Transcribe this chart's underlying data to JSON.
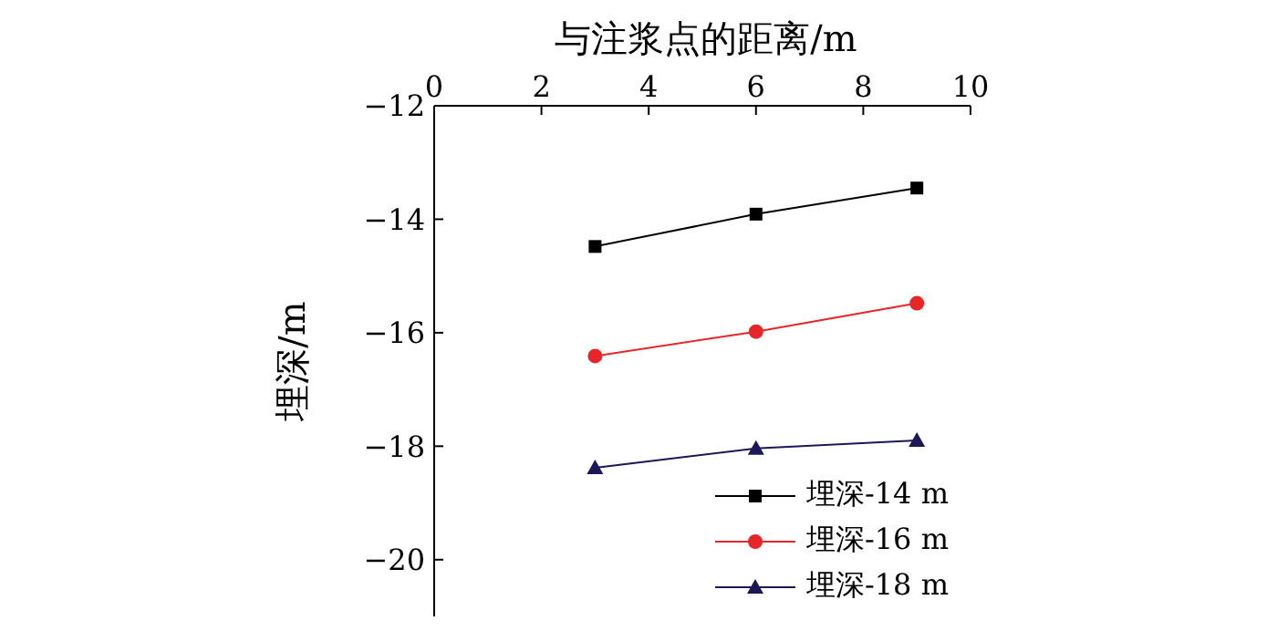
{
  "chart_data": {
    "type": "line",
    "xlabel": "与注浆点的距离/m",
    "ylabel": "埋深/m",
    "x": [
      3,
      6,
      9
    ],
    "series": [
      {
        "name": "埋深-14 m",
        "color": "#000000",
        "marker": "square",
        "values": [
          -14.48,
          -13.91,
          -13.45
        ]
      },
      {
        "name": "埋深-16 m",
        "color": "#e8262a",
        "marker": "circle",
        "values": [
          -16.41,
          -15.98,
          -15.48
        ]
      },
      {
        "name": "埋深-18 m",
        "color": "#1c1858",
        "marker": "triangle",
        "values": [
          -18.38,
          -18.04,
          -17.9
        ]
      }
    ],
    "xlim": [
      0,
      10
    ],
    "xticks": [
      0,
      2,
      4,
      6,
      8,
      10
    ],
    "ylim": [
      -21,
      -12
    ],
    "yticks": [
      -12,
      -14,
      -16,
      -18,
      -20
    ],
    "grid": false,
    "legend": "bottom right"
  }
}
